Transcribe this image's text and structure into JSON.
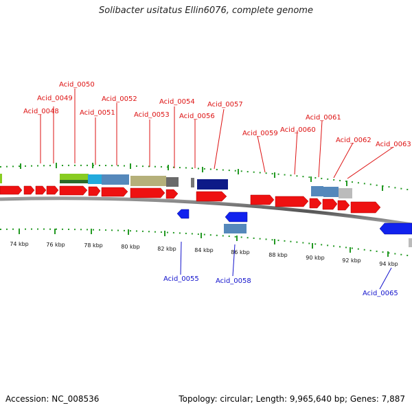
{
  "header": {
    "title": "Solibacter usitatus Ellin6076, complete genome"
  },
  "footer": {
    "accession": "Accession: NC_008536",
    "summary": "Topology: circular; Length: 9,965,640 bp; Genes: 7,887"
  },
  "colors": {
    "forward_gene": "#ee1111",
    "reverse_gene": "#1122ee",
    "label_forward": "#dd1111",
    "label_reverse": "#1111cc",
    "tick": "#229922",
    "backbone": "#666666"
  },
  "forward_labels": [
    "Acid_0048",
    "Acid_0049",
    "Acid_0050",
    "Acid_0051",
    "Acid_0052",
    "Acid_0053",
    "Acid_0054",
    "Acid_0056",
    "Acid_0057",
    "Acid_0059",
    "Acid_0060",
    "Acid_0061",
    "Acid_0062",
    "Acid_0063"
  ],
  "reverse_labels": [
    "Acid_0055",
    "Acid_0058",
    "Acid_0065"
  ],
  "kbp_labels": [
    "74 kbp",
    "76 kbp",
    "78 kbp",
    "80 kbp",
    "82 kbp",
    "84 kbp",
    "86 kbp",
    "88 kbp",
    "90 kbp",
    "92 kbp",
    "94 kbp"
  ]
}
